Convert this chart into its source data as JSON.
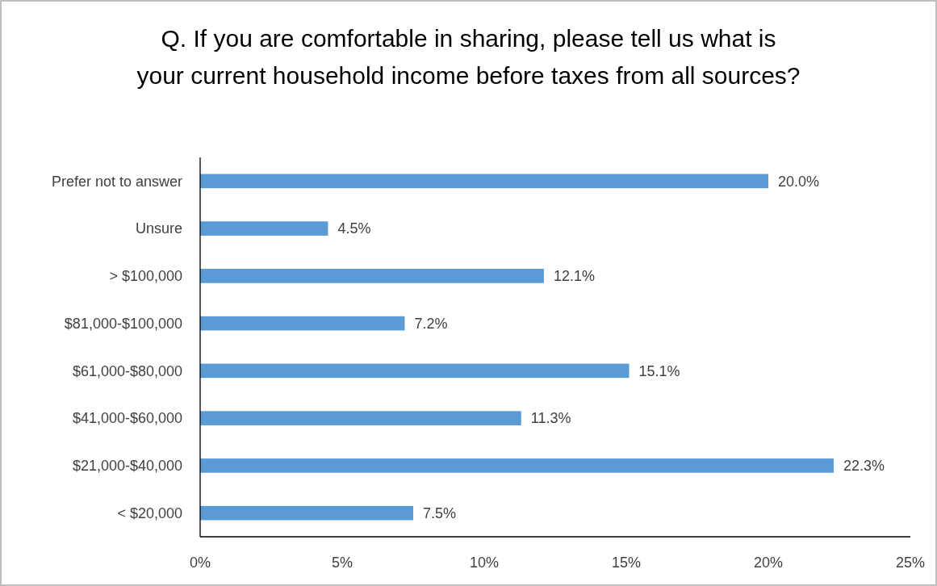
{
  "chart_data": {
    "type": "bar",
    "orientation": "horizontal",
    "title": "Q. If you are comfortable in sharing, please tell us what is your current household income before taxes from all sources?",
    "categories": [
      "Prefer not to answer",
      "Unsure",
      "> $100,000",
      "$81,000-$100,000",
      "$61,000-$80,000",
      "$41,000-$60,000",
      "$21,000-$40,000",
      "< $20,000"
    ],
    "values": [
      20.0,
      4.5,
      12.1,
      7.2,
      15.1,
      11.3,
      22.3,
      7.5
    ],
    "value_labels": [
      "20.0%",
      "4.5%",
      "12.1%",
      "7.2%",
      "15.1%",
      "11.3%",
      "22.3%",
      "7.5%"
    ],
    "color": "#5b9bd5",
    "xlim": [
      0,
      25
    ],
    "xticks": [
      {
        "value": 0,
        "label": "0%"
      },
      {
        "value": 5,
        "label": "5%"
      },
      {
        "value": 10,
        "label": "10%"
      },
      {
        "value": 15,
        "label": "15%"
      },
      {
        "value": 20,
        "label": "20%"
      },
      {
        "value": 25,
        "label": "25%"
      }
    ],
    "grid": false
  }
}
